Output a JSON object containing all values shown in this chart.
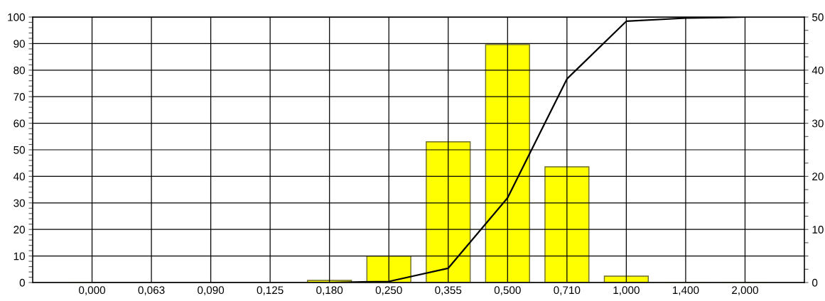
{
  "chart_data": {
    "type": "bar",
    "categories": [
      "0,000",
      "0,063",
      "0,090",
      "0,125",
      "0,180",
      "0,250",
      "0,355",
      "0,500",
      "0,710",
      "1,000",
      "1,400",
      "2,000"
    ],
    "series": [
      {
        "axis": "y2",
        "color": "#ffff00",
        "values": [
          0,
          0,
          0,
          0,
          0.4,
          5.0,
          26.5,
          44.8,
          21.8,
          1.2,
          0,
          0
        ]
      },
      {
        "type": "line",
        "axis": "y",
        "color": "#000000",
        "values": [
          0,
          0,
          0,
          0,
          0,
          0.4,
          5.4,
          31.9,
          76.7,
          98.4,
          99.6,
          100
        ]
      }
    ],
    "ylim": [
      0,
      100
    ],
    "yticks": [
      0,
      {
        "value": 2,
        "label": null
      },
      {
        "value": 4,
        "label": null
      },
      {
        "value": 6,
        "label": null
      },
      {
        "value": 8,
        "label": null
      },
      10,
      {
        "value": 12,
        "label": null
      },
      {
        "value": 14,
        "label": null
      },
      {
        "value": 16,
        "label": null
      },
      {
        "value": 18,
        "label": null
      },
      20,
      {
        "value": 22,
        "label": null
      },
      {
        "value": 24,
        "label": null
      },
      {
        "value": 26,
        "label": null
      },
      {
        "value": 28,
        "label": null
      },
      30,
      {
        "value": 32,
        "label": null
      },
      {
        "value": 34,
        "label": null
      },
      {
        "value": 36,
        "label": null
      },
      {
        "value": 38,
        "label": null
      },
      40,
      {
        "value": 42,
        "label": null
      },
      {
        "value": 44,
        "label": null
      },
      {
        "value": 46,
        "label": null
      },
      {
        "value": 48,
        "label": null
      },
      50,
      {
        "value": 52,
        "label": null
      },
      {
        "value": 54,
        "label": null
      },
      {
        "value": 56,
        "label": null
      },
      {
        "value": 58,
        "label": null
      },
      60,
      {
        "value": 62,
        "label": null
      },
      {
        "value": 64,
        "label": null
      },
      {
        "value": 66,
        "label": null
      },
      {
        "value": 68,
        "label": null
      },
      70,
      {
        "value": 72,
        "label": null
      },
      {
        "value": 74,
        "label": null
      },
      {
        "value": 76,
        "label": null
      },
      {
        "value": 78,
        "label": null
      },
      80,
      {
        "value": 82,
        "label": null
      },
      {
        "value": 84,
        "label": null
      },
      {
        "value": 86,
        "label": null
      },
      {
        "value": 88,
        "label": null
      },
      90,
      {
        "value": 92,
        "label": null
      },
      {
        "value": 94,
        "label": null
      },
      {
        "value": 96,
        "label": null
      },
      {
        "value": 98,
        "label": null
      },
      100
    ],
    "y2lim": [
      0,
      50
    ],
    "y2ticks": [
      0,
      {
        "value": 2.5,
        "label": null
      },
      {
        "value": 5,
        "label": null
      },
      {
        "value": 7.5,
        "label": null
      },
      10,
      {
        "value": 12.5,
        "label": null
      },
      {
        "value": 15,
        "label": null
      },
      {
        "value": 17.5,
        "label": null
      },
      20,
      {
        "value": 22.5,
        "label": null
      },
      {
        "value": 25,
        "label": null
      },
      {
        "value": 27.5,
        "label": null
      },
      30,
      {
        "value": 32.5,
        "label": null
      },
      {
        "value": 35,
        "label": null
      },
      {
        "value": 37.5,
        "label": null
      },
      40,
      {
        "value": 42.5,
        "label": null
      },
      {
        "value": 45,
        "label": null
      },
      {
        "value": 47.5,
        "label": null
      },
      50
    ],
    "grid": true,
    "legend": false,
    "marker": "none",
    "line_style": "solid"
  }
}
